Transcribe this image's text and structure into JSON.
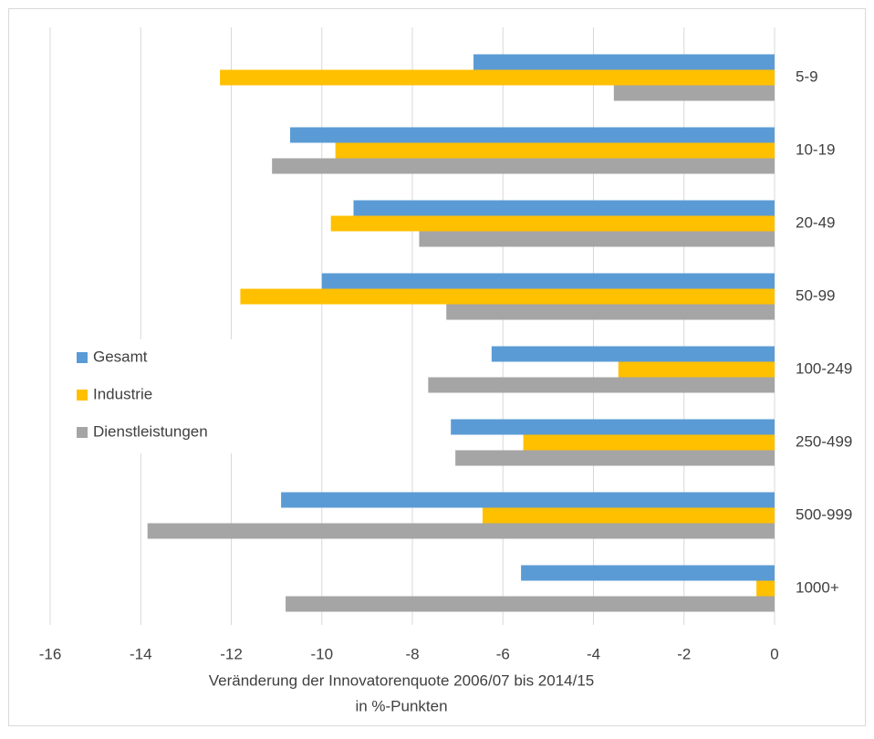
{
  "chart_data": {
    "type": "hbar",
    "xlabel": [
      "Veränderung der Innovatorenquote 2006/07 bis 2014/15",
      "in %-Punkten"
    ],
    "categories": [
      "5-9",
      "10-19",
      "20-49",
      "50-99",
      "100-249",
      "250-499",
      "500-999",
      "1000+"
    ],
    "series": [
      {
        "name": "Gesamt",
        "color": "#5b9bd5",
        "values": [
          -6.65,
          -10.7,
          -9.3,
          -10.0,
          -6.25,
          -7.15,
          -10.9,
          -5.6
        ]
      },
      {
        "name": "Industrie",
        "color": "#ffc000",
        "values": [
          -12.25,
          -9.7,
          -9.8,
          -11.8,
          -3.45,
          -5.55,
          -6.45,
          -0.4
        ]
      },
      {
        "name": "Dienstleistungen",
        "color": "#a5a5a5",
        "values": [
          -3.55,
          -11.1,
          -7.85,
          -7.25,
          -7.65,
          -7.05,
          -13.85,
          -10.8
        ]
      }
    ],
    "xlim": [
      -16,
      0
    ],
    "xticks": [
      -16,
      -14,
      -12,
      -10,
      -8,
      -6,
      -4,
      -2,
      0
    ],
    "grid": true,
    "legend": "left"
  }
}
